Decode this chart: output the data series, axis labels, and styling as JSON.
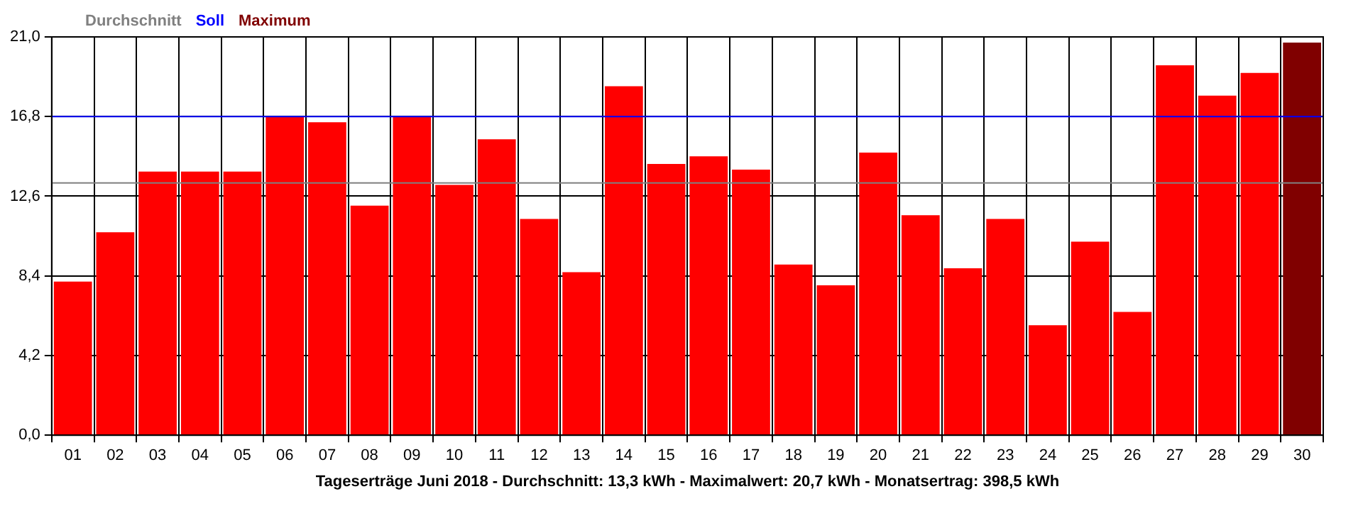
{
  "chart_data": {
    "type": "bar",
    "stacked": true,
    "xlabel": "Tageserträge Juni 2018 - Durchschnitt: 13,3 kWh - Maximalwert: 20,7 kWh - Monatsertrag: 398,5 kWh",
    "categories": [
      "01",
      "02",
      "03",
      "04",
      "05",
      "06",
      "07",
      "08",
      "09",
      "10",
      "11",
      "12",
      "13",
      "14",
      "15",
      "16",
      "17",
      "18",
      "19",
      "20",
      "21",
      "22",
      "23",
      "24",
      "25",
      "26",
      "27",
      "28",
      "29",
      "30"
    ],
    "series": [
      {
        "color": "#ff0000",
        "values": [
          8.1,
          10.7,
          13.9,
          13.9,
          13.9,
          16.8,
          16.5,
          12.1,
          16.8,
          13.2,
          15.6,
          11.4,
          8.6,
          18.4,
          14.3,
          14.7,
          14.0,
          9.0,
          7.9,
          14.9,
          11.6,
          8.8,
          11.4,
          5.8,
          10.2,
          6.5,
          19.5,
          17.9,
          19.1,
          null
        ]
      },
      {
        "name": "Maximum",
        "color": "#800000",
        "values": [
          null,
          null,
          null,
          null,
          null,
          null,
          null,
          null,
          null,
          null,
          null,
          null,
          null,
          null,
          null,
          null,
          null,
          null,
          null,
          null,
          null,
          null,
          null,
          null,
          null,
          null,
          null,
          null,
          null,
          20.7
        ]
      }
    ],
    "ylim": [
      0,
      21
    ],
    "yticks": [
      {
        "value": 0,
        "label": "0,0"
      },
      {
        "value": 4.2,
        "label": "4,2"
      },
      {
        "value": 8.4,
        "label": "8,4"
      },
      {
        "value": 12.6,
        "label": "12,6"
      },
      {
        "value": 16.8,
        "label": "16,8"
      },
      {
        "value": 21,
        "label": "21,0"
      }
    ],
    "grid": true,
    "legend": "top left",
    "ref_lines": [
      {
        "axis": "y",
        "value": 13.3,
        "label": "Durchschnitt",
        "color": "#808080"
      },
      {
        "axis": "y",
        "value": 16.8,
        "label": "Soll",
        "color": "#0000ff"
      }
    ]
  }
}
